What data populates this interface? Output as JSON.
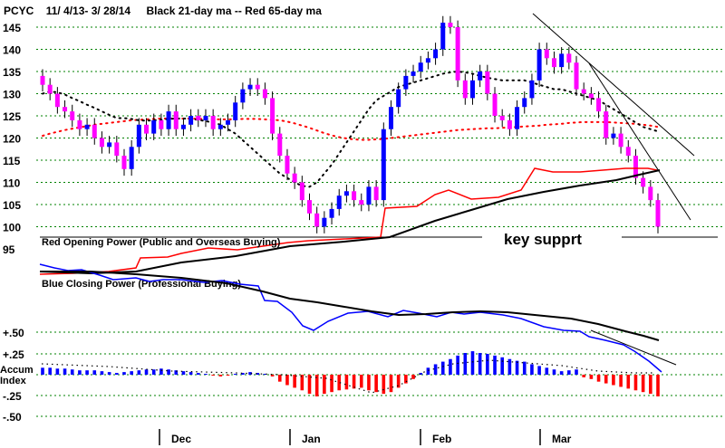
{
  "header": {
    "symbol": "PCYC",
    "range": "11/ 4/13- 3/ 28/14",
    "legend": "Black 21-day ma --  Red 65-day ma"
  },
  "annotations": {
    "key_support": "key supprt",
    "red_power": "Red Opening Power (Public and Overseas Buying)",
    "blue_power": "Blue Closing Power (Professional Buying)",
    "accum_label_1": "Accum",
    "accum_label_2": "Index"
  },
  "colors": {
    "up_candle": "#0000ff",
    "down_candle": "#ff00ff",
    "ma21": "#000000",
    "ma65": "#ff0000",
    "red_power": "#ff0000",
    "blue_power": "#0000ff",
    "accum_pos": "#0000ff",
    "accum_neg": "#ff0000",
    "grid": "#008000"
  },
  "chart_data": {
    "type": "candlestick",
    "title": "PCYC  11/ 4/13- 3/ 28/14   Black 21-day ma --  Red 65-day ma",
    "price_axis": {
      "ticks": [
        "145",
        "140",
        "135",
        "130",
        "125",
        "120",
        "115",
        "110",
        "105",
        "100",
        "95"
      ],
      "ylim": [
        95,
        147
      ]
    },
    "accum_axis": {
      "ticks": [
        "+.50",
        "+.25",
        "Accum",
        "-.25",
        "-.50"
      ]
    },
    "months": [
      "Dec",
      "Jan",
      "Feb",
      "Mar"
    ],
    "key_support_level": 97,
    "closes": [
      132,
      130,
      127,
      126,
      124,
      122,
      123,
      120,
      118,
      119,
      116,
      113,
      118,
      123,
      121,
      124,
      122,
      126,
      122,
      123,
      125,
      124,
      125,
      122,
      123,
      124,
      128,
      131,
      132,
      131,
      129,
      121,
      116,
      112,
      110,
      106,
      103,
      100,
      102,
      104,
      107,
      108,
      106,
      105,
      109,
      106,
      122,
      127,
      131,
      134,
      135,
      137,
      138,
      140,
      146,
      145,
      133,
      129,
      133,
      135,
      130,
      125,
      124,
      122,
      127,
      129,
      133,
      140,
      138,
      136,
      139,
      137,
      131,
      130,
      129,
      126,
      120,
      121,
      118,
      116,
      111,
      109,
      106,
      100
    ],
    "ma21": [
      130,
      130.5,
      130.3,
      129.8,
      129,
      128.3,
      127.5,
      126.8,
      126,
      125.2,
      124.5,
      124.5,
      124.3,
      124,
      123.9,
      124,
      124.1,
      124.3,
      124.4,
      124.4,
      124.3,
      124.1,
      123.8,
      123.5,
      123,
      122,
      121,
      119.5,
      118,
      116.5,
      115,
      113.5,
      112,
      111,
      110,
      109.2,
      109,
      110,
      112,
      114,
      116.5,
      119,
      121.5,
      124,
      126.5,
      128.5,
      129.5,
      130.5,
      131.5,
      132,
      132.5,
      133,
      133.5,
      134,
      134.5,
      134.8,
      135,
      134.8,
      134.5,
      134,
      133.6,
      133.3,
      133,
      133,
      133,
      133,
      132.5,
      132,
      131.5,
      131,
      131,
      130.5,
      130,
      129.5,
      129,
      128.5,
      127.5,
      126.5,
      125.5,
      124.5,
      123.5,
      122.5,
      122,
      121.5
    ],
    "ma65": [
      120.5,
      121,
      121.4,
      121.8,
      122.1,
      122.4,
      122.7,
      123,
      123.2,
      123.4,
      123.6,
      123.8,
      124,
      124.1,
      124.2,
      124.3,
      124.4,
      124.4,
      124.4,
      124.4,
      124.4,
      124.3,
      124.3,
      124.2,
      124.2,
      124.2,
      124.2,
      124.3,
      124.3,
      124.3,
      124.2,
      124.1,
      124,
      123.7,
      123.3,
      122.8,
      122.3,
      121.7,
      121.1,
      120.6,
      120.2,
      119.9,
      119.7,
      119.6,
      119.6,
      119.7,
      119.8,
      120,
      120.2,
      120.4,
      120.6,
      120.8,
      121,
      121.2,
      121.4,
      121.6,
      121.8,
      121.9,
      122,
      122.1,
      122.2,
      122.2,
      122.3,
      122.4,
      122.5,
      122.6,
      122.7,
      122.8,
      123,
      123.1,
      123.2,
      123.4,
      123.5,
      123.6,
      123.6,
      123.6,
      123.6,
      123.5,
      123.4,
      123.3,
      123.2,
      123,
      122.8,
      122.5
    ],
    "accum": [
      0.08,
      0.08,
      0.07,
      0.07,
      0.06,
      0.05,
      0.05,
      0.05,
      0.04,
      0.03,
      0.02,
      0.03,
      0.04,
      0.05,
      0.06,
      0.06,
      0.07,
      0.06,
      0.05,
      0.04,
      0.03,
      0.02,
      0.01,
      -0.01,
      -0.02,
      -0.01,
      0.01,
      0.02,
      0.03,
      0.02,
      0.01,
      -0.02,
      -0.08,
      -0.12,
      -0.15,
      -0.18,
      -0.22,
      -0.25,
      -0.22,
      -0.2,
      -0.18,
      -0.17,
      -0.16,
      -0.15,
      -0.18,
      -0.2,
      -0.22,
      -0.2,
      -0.15,
      -0.1,
      -0.05,
      0.02,
      0.08,
      0.12,
      0.15,
      0.18,
      0.22,
      0.25,
      0.27,
      0.25,
      0.24,
      0.22,
      0.2,
      0.18,
      0.16,
      0.15,
      0.12,
      0.1,
      0.08,
      0.06,
      0.04,
      0.05,
      0.06,
      -0.03,
      -0.05,
      -0.08,
      -0.1,
      -0.12,
      -0.14,
      -0.16,
      -0.18,
      -0.2,
      -0.22,
      -0.25
    ]
  }
}
